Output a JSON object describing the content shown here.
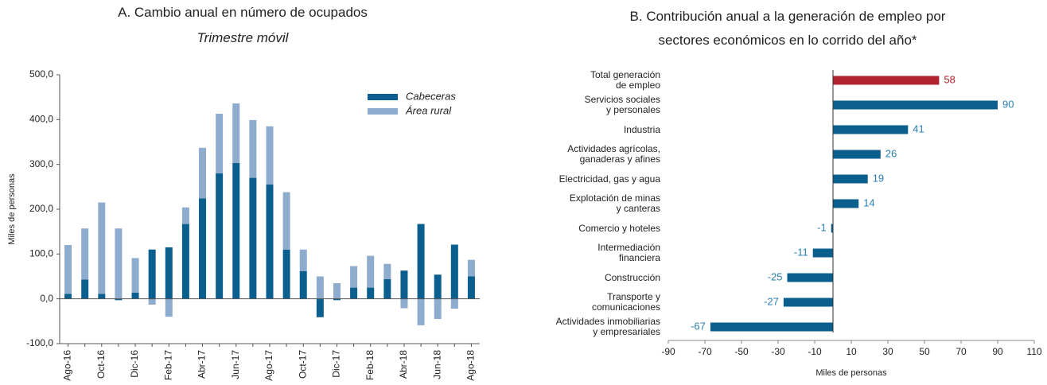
{
  "chart_data": [
    {
      "type": "stacked_bar",
      "title": "A. Cambio anual en número de ocupados",
      "subtitle": "Trimestre móvil",
      "y_label": "Miles de personas",
      "categories": [
        "Ago-16",
        null,
        "Oct-16",
        null,
        "Dic-16",
        null,
        "Feb-17",
        null,
        "Abr-17",
        null,
        "Jun-17",
        null,
        "Ago-17",
        null,
        "Oct-17",
        null,
        "Dic-17",
        null,
        "Feb-18",
        null,
        "Abr-18",
        null,
        "Jun-18",
        null,
        "Ago-18"
      ],
      "series": [
        {
          "name": "Cabeceras",
          "color": "#0b5f8e",
          "values": [
            11,
            43,
            11,
            -3,
            14,
            110,
            115,
            167,
            224,
            280,
            303,
            270,
            255,
            110,
            62,
            -41,
            -3,
            25,
            25,
            44,
            63,
            167,
            54,
            121,
            50
          ]
        },
        {
          "name": "Área rural",
          "color": "#8eaccd",
          "values": [
            109,
            114,
            204,
            157,
            77,
            -13,
            -40,
            37,
            113,
            133,
            133,
            129,
            130,
            128,
            48,
            50,
            35,
            48,
            71,
            34,
            -21,
            -59,
            -45,
            -22,
            37
          ]
        }
      ],
      "ylim": [
        -100,
        500
      ],
      "yticks": [
        {
          "value": -100,
          "label": "-100,0"
        },
        {
          "value": 0,
          "label": "0,0"
        },
        {
          "value": 100,
          "label": "100,0"
        },
        {
          "value": 200,
          "label": "200,0"
        },
        {
          "value": 300,
          "label": "300,0"
        },
        {
          "value": 400,
          "label": "400,0"
        },
        {
          "value": 500,
          "label": "500,0"
        }
      ],
      "legend": "top-right"
    },
    {
      "type": "hbar",
      "title": "B. Contribución anual a la generación de empleo por sectores económicos en lo corrido del año*",
      "x_label": "Miles de personas",
      "categories": [
        "Total generación\nde empleo",
        "Servicios sociales\ny personales",
        "Industria",
        "Actividades agrícolas,\nganaderas y afines",
        "Electricidad, gas y agua",
        "Explotación de minas\ny canteras",
        "Comercio y hoteles",
        "Intermediación\nfinanciera",
        "Construcción",
        "Transporte y\ncomunicaciones",
        "Actividades inmobiliarias\ny empresariales"
      ],
      "values": [
        58,
        90,
        41,
        26,
        19,
        14,
        -1,
        -11,
        -25,
        -27,
        -67
      ],
      "colors": [
        "#b0222e",
        "#0b5f8e",
        "#0b5f8e",
        "#0b5f8e",
        "#0b5f8e",
        "#0b5f8e",
        "#0b5f8e",
        "#0b5f8e",
        "#0b5f8e",
        "#0b5f8e",
        "#0b5f8e"
      ],
      "label_colors": [
        "#b0222e",
        "#2a7fb0",
        "#2a7fb0",
        "#2a7fb0",
        "#2a7fb0",
        "#2a7fb0",
        "#2a7fb0",
        "#2a7fb0",
        "#2a7fb0",
        "#2a7fb0",
        "#2a7fb0"
      ],
      "xlim": [
        -90,
        110
      ],
      "xticks": [
        -90,
        -70,
        -50,
        -30,
        -10,
        10,
        30,
        50,
        70,
        90,
        110
      ]
    }
  ]
}
